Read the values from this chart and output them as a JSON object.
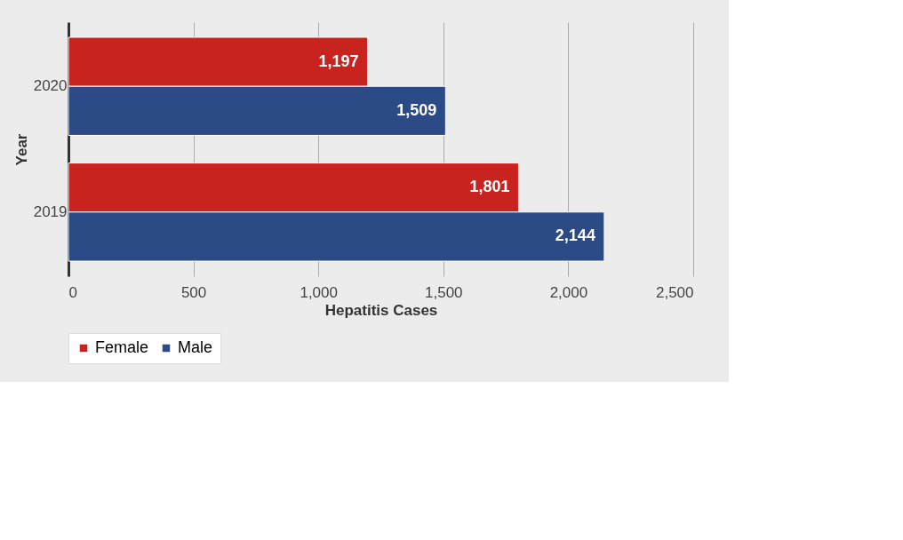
{
  "chart_data": {
    "type": "bar",
    "orientation": "horizontal",
    "xlabel": "Hepatitis Cases",
    "ylabel": "Year",
    "categories": [
      "2020",
      "2019"
    ],
    "series": [
      {
        "name": "Female",
        "color": "#c8231e",
        "values": [
          1197,
          1801
        ],
        "value_labels": [
          "1,197",
          "1,801"
        ]
      },
      {
        "name": "Male",
        "color": "#2c4a85",
        "values": [
          1509,
          2144
        ],
        "value_labels": [
          "1,509",
          "2,144"
        ]
      }
    ],
    "xlim": [
      0,
      2500
    ],
    "xticks": [
      0,
      500,
      {
        "value": 1000,
        "label": "1,000"
      },
      {
        "value": 1500,
        "label": "1,500"
      },
      {
        "value": 2000,
        "label": "2,000"
      },
      {
        "value": 2500,
        "label": "2,500"
      }
    ],
    "grid": "x",
    "legend": "bottom"
  }
}
